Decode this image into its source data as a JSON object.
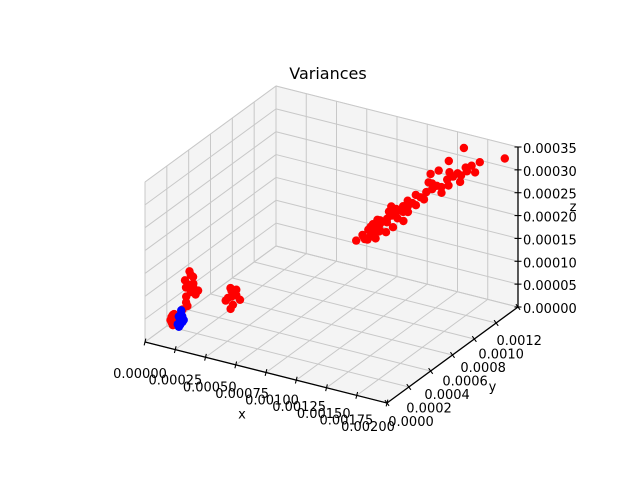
{
  "chart_data": {
    "type": "scatter3d",
    "title": "Variances",
    "xlabel": "x",
    "ylabel": "y",
    "zlabel": "z",
    "xlim": [
      0.0,
      0.002
    ],
    "ylim": [
      0.0,
      0.0012
    ],
    "zlim": [
      0.0,
      0.00035
    ],
    "xticks": [
      0.0,
      0.00025,
      0.0005,
      0.00075,
      0.001,
      0.00125,
      0.0015,
      0.00175,
      0.002
    ],
    "xtick_labels": [
      "0.00000",
      "0.00025",
      "0.00050",
      "0.00075",
      "0.00100",
      "0.00125",
      "0.00150",
      "0.00175",
      "0.00200"
    ],
    "yticks": [
      0.0,
      0.0002,
      0.0004,
      0.0006,
      0.0008,
      0.001,
      0.0012
    ],
    "ytick_labels": [
      "0.0000",
      "0.0002",
      "0.0004",
      "0.0006",
      "0.0008",
      "0.0010",
      "0.0012"
    ],
    "zticks": [
      0.0,
      5e-05,
      0.0001,
      0.00015,
      0.0002,
      0.00025,
      0.0003,
      0.00035
    ],
    "ztick_labels": [
      "0.00000",
      "0.00005",
      "0.00010",
      "0.00015",
      "0.00020",
      "0.00025",
      "0.00030",
      "0.00035"
    ],
    "grid": true,
    "legend": false,
    "style": {
      "background": "#ffffff",
      "pane_color": "#f4f4f4",
      "pane_edge_color": "#e2e2e2",
      "grid_color": "#c8c8c8",
      "spine_color": "#000000",
      "tick_label_color": "#000000"
    },
    "series": [
      {
        "name": "red",
        "color": "#ff0000",
        "points": [
          [
            0.00113,
            0.00074,
            0.00018
          ],
          [
            0.00116,
            0.00076,
            0.00019
          ],
          [
            0.00118,
            0.00073,
            0.000175
          ],
          [
            0.0012,
            0.00078,
            0.000195
          ],
          [
            0.00122,
            0.0008,
            0.0002
          ],
          [
            0.00115,
            0.00079,
            0.000185
          ],
          [
            0.00119,
            0.00081,
            0.000205
          ],
          [
            0.00124,
            0.00077,
            0.00019
          ],
          [
            0.00126,
            0.00082,
            0.00021
          ],
          [
            0.00121,
            0.00075,
            0.00018
          ],
          [
            0.00117,
            0.00077,
            0.000195
          ],
          [
            0.00128,
            0.00084,
            0.000215
          ],
          [
            0.0013,
            0.00086,
            0.00022
          ],
          [
            0.00125,
            0.00083,
            0.0002
          ],
          [
            0.00127,
            0.0008,
            0.000185
          ],
          [
            0.00132,
            0.00085,
            0.00021
          ],
          [
            0.00123,
            0.00079,
            0.00021
          ],
          [
            0.00129,
            0.00087,
            0.000225
          ],
          [
            0.00134,
            0.00088,
            0.00022
          ],
          [
            0.00131,
            0.00082,
            0.000195
          ],
          [
            0.00114,
            0.00075,
            0.00017
          ],
          [
            0.00136,
            0.0009,
            0.00023
          ],
          [
            0.0012,
            0.00074,
            0.000185
          ],
          [
            0.00125,
            0.00085,
            0.00022
          ],
          [
            0.00133,
            0.00089,
            0.00023
          ],
          [
            0.00118,
            0.00078,
            0.0002
          ],
          [
            0.00138,
            0.00092,
            0.000235
          ],
          [
            0.00135,
            0.00091,
            0.00024
          ],
          [
            0.00122,
            0.00076,
            0.000175
          ],
          [
            0.0014,
            0.00093,
            0.00023
          ],
          [
            0.00137,
            0.00089,
            0.00022
          ],
          [
            0.00116,
            0.00072,
            0.00018
          ],
          [
            0.00142,
            0.00095,
            0.000245
          ],
          [
            0.00139,
            0.00094,
            0.00025
          ],
          [
            0.0012,
            0.00076,
            0.000185
          ],
          [
            0.00145,
            0.00097,
            0.000255
          ],
          [
            0.00148,
            0.00099,
            0.00026
          ],
          [
            0.00144,
            0.00096,
            0.00024
          ],
          [
            0.0015,
            0.00101,
            0.000265
          ],
          [
            0.00147,
            0.001,
            0.00027
          ],
          [
            0.00152,
            0.00103,
            0.00026
          ],
          [
            0.00155,
            0.00105,
            0.000275
          ],
          [
            0.00153,
            0.00102,
            0.00025
          ],
          [
            0.00158,
            0.00107,
            0.00028
          ],
          [
            0.0016,
            0.00109,
            0.000285
          ],
          [
            0.00156,
            0.00106,
            0.00029
          ],
          [
            0.00162,
            0.0011,
            0.00028
          ],
          [
            0.00164,
            0.00112,
            0.000295
          ],
          [
            0.00157,
            0.00104,
            0.000265
          ],
          [
            0.00166,
            0.00111,
            0.00029
          ],
          [
            0.00163,
            0.00108,
            0.00027
          ],
          [
            0.00168,
            0.00113,
            0.0003
          ],
          [
            0.00146,
            0.00098,
            0.000275
          ],
          [
            0.0011,
            0.000715,
            0.00017
          ],
          [
            0.0019,
            0.00119,
            0.00032
          ],
          [
            0.00158,
            0.00117,
            0.000325
          ],
          [
            0.0015,
            0.00112,
            0.0003
          ],
          [
            0.0017,
            0.00114,
            0.000285
          ],
          [
            0.00172,
            0.00116,
            0.000305
          ],
          [
            0.00144,
            0.00102,
            0.000285
          ],
          [
            0.00136,
            0.00086,
            0.000205
          ],
          [
            0.00124,
            0.00078,
            0.00019
          ],
          [
            0.00126,
            0.00086,
            0.00023
          ],
          [
            0.00148,
            0.00105,
            0.00029
          ],
          [
            0.00013,
            0.0002,
            4.5e-05
          ],
          [
            0.00015,
            0.00021,
            6e-05
          ],
          [
            0.00016,
            0.0002,
            7.5e-05
          ],
          [
            0.00014,
            0.00022,
            9e-05
          ],
          [
            0.00017,
            0.00021,
            0.0001
          ],
          [
            0.00015,
            0.0002,
            0.00011
          ],
          [
            0.00018,
            0.00022,
            0.00012
          ],
          [
            0.00016,
            0.00023,
            0.000125
          ],
          [
            0.00019,
            0.00021,
            8.5e-05
          ],
          [
            0.0002,
            0.00022,
            9.5e-05
          ],
          [
            0.00017,
            0.0002,
            5.5e-05
          ],
          [
            0.00021,
            0.00021,
            0.000105
          ],
          [
            0.00022,
            0.00022,
            8e-05
          ],
          [
            0.00019,
            0.00023,
            0.000115
          ],
          [
            0.00024,
            0.00022,
            9e-05
          ],
          [
            0.00036,
            0.00034,
            5.5e-05
          ],
          [
            0.0004,
            0.00035,
            6.5e-05
          ],
          [
            0.00042,
            0.00034,
            5e-05
          ],
          [
            0.00039,
            0.00036,
            7.5e-05
          ],
          [
            0.00041,
            0.00033,
            4.2e-05
          ],
          [
            0.00044,
            0.00035,
            7e-05
          ],
          [
            0.0004,
            0.00034,
            8.5e-05
          ],
          [
            0.00046,
            0.00036,
            6e-05
          ],
          [
            0.00037,
            0.00035,
            6e-05
          ],
          [
            0.00043,
            0.00036,
            8e-05
          ],
          [
            4e-05,
            0.0002,
            1e-05
          ],
          [
            5e-05,
            0.00021,
            2e-05
          ],
          [
            3e-05,
            0.0002,
            1.5e-05
          ],
          [
            6e-05,
            0.00022,
            1e-05
          ],
          [
            4e-05,
            0.00021,
            2.5e-05
          ],
          [
            5e-05,
            0.0002,
            5e-06
          ],
          [
            3e-05,
            0.00021,
            2e-05
          ],
          [
            6e-05,
            0.0002,
            3e-05
          ],
          [
            4e-05,
            0.00022,
            1.5e-05
          ]
        ]
      },
      {
        "name": "blue",
        "color": "#0000ff",
        "points": [
          [
            9e-05,
            0.0002,
            1e-05
          ],
          [
            0.0001,
            0.00021,
            2e-05
          ],
          [
            0.00011,
            0.0002,
            1e-05
          ],
          [
            9e-05,
            0.00021,
            2.5e-05
          ],
          [
            0.0001,
            0.0002,
            5e-06
          ],
          [
            0.00012,
            0.00021,
            1.5e-05
          ],
          [
            0.00011,
            0.00022,
            2.5e-05
          ],
          [
            0.0001,
            0.00022,
            3e-05
          ],
          [
            0.00012,
            0.0002,
            2e-05
          ],
          [
            9e-05,
            0.00022,
            5e-06
          ],
          [
            0.00013,
            0.00021,
            2e-05
          ],
          [
            0.00011,
            0.00021,
            4e-05
          ]
        ]
      }
    ]
  }
}
